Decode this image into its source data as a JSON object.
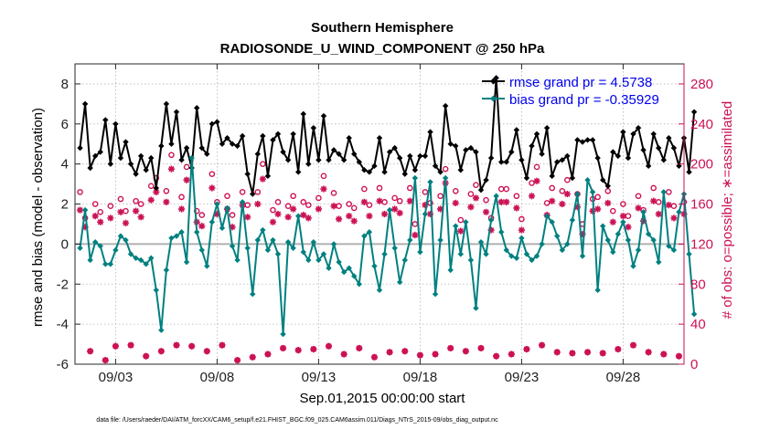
{
  "chart_data": {
    "type": "line",
    "title": "Southern Hemisphere",
    "subtitle": "RADIOSONDE_U_WIND_COMPONENT @ 250 hPa",
    "xlabel": "Sep.01,2015 00:00:00 start",
    "ylabel": "rmse and bias (model - observation)",
    "y2label": "# of obs: o=possible; ∗=assimilated",
    "footer": "data file: /Users/raeder/DAI/ATM_forcXX/CAM6_setup/f.e21.FHIST_BGC.f09_025.CAM6assim.011/Diags_NTrS_2015-09/obs_diag_output.nc",
    "xlim": [
      1.0,
      31.0
    ],
    "ylim": [
      -6,
      9
    ],
    "y2lim": [
      0,
      300
    ],
    "yticks": [
      "-6",
      "-4",
      "-2",
      "0",
      "2",
      "4",
      "6",
      "8"
    ],
    "y2ticks": [
      "0",
      "40",
      "80",
      "120",
      "160",
      "200",
      "240",
      "280"
    ],
    "xticks": [
      {
        "day": 3,
        "label": "09/03"
      },
      {
        "day": 8,
        "label": "09/08"
      },
      {
        "day": 13,
        "label": "09/13"
      },
      {
        "day": 18,
        "label": "09/18"
      },
      {
        "day": 23,
        "label": "09/23"
      },
      {
        "day": 28,
        "label": "09/28"
      }
    ],
    "grid": true,
    "legend_position": "top-right",
    "colors": {
      "rmse": "#000000",
      "bias": "#008080",
      "obs": "#cc1155",
      "zero": "#b0b0b0"
    },
    "series": [
      {
        "name": "rmse",
        "legend": "rmse grand pr = 4.5738",
        "x_start": 1.25,
        "x_step": 0.25,
        "values": [
          4.8,
          7.0,
          3.8,
          4.4,
          4.6,
          6.2,
          4.0,
          6.0,
          4.3,
          5.1,
          4.0,
          3.5,
          4.4,
          3.7,
          4.3,
          2.8,
          4.9,
          7.0,
          5.0,
          6.6,
          4.2,
          4.8,
          3.8,
          6.8,
          4.8,
          4.5,
          6.0,
          6.1,
          5.0,
          5.3,
          5.0,
          4.9,
          5.4,
          3.5,
          2.5,
          4.5,
          5.4,
          3.4,
          5.2,
          5.5,
          4.6,
          4.2,
          5.5,
          3.6,
          6.5,
          4.0,
          5.8,
          4.2,
          6.4,
          4.2,
          4.7,
          4.5,
          4.2,
          5.3,
          4.5,
          4.1,
          3.7,
          3.6,
          3.9,
          5.3,
          3.6,
          4.6,
          4.8,
          4.3,
          3.5,
          4.4,
          3.7,
          4.4,
          4.4,
          5.6,
          3.9,
          3.6,
          6.9,
          5.0,
          4.9,
          3.7,
          4.7,
          4.8,
          4.6,
          2.7,
          3.2,
          4.3,
          8.3,
          4.1,
          4.1,
          4.6,
          5.7,
          4.2,
          3.3,
          4.9,
          5.5,
          4.5,
          5.8,
          3.4,
          4.1,
          4.2,
          4.4,
          3.3,
          5.2,
          5.1,
          5.2,
          5.2,
          4.3,
          3.2,
          2.9,
          4.6,
          4.4,
          5.6,
          4.3,
          5.5,
          5.8,
          4.7,
          3.9,
          5.5,
          4.8,
          4.2,
          5.3,
          4.8,
          3.9,
          5.3,
          3.6,
          6.6
        ]
      },
      {
        "name": "bias",
        "legend": "bias grand pr = -0.35929",
        "x_start": 1.25,
        "x_step": 0.25,
        "values": [
          -0.2,
          1.7,
          -0.8,
          0.1,
          -0.1,
          -1.0,
          -1.0,
          -0.3,
          0.4,
          0.2,
          -0.5,
          -0.7,
          -0.8,
          -1.0,
          -0.7,
          -2.3,
          -4.3,
          -1.3,
          0.3,
          0.4,
          0.6,
          -0.9,
          4.3,
          0.6,
          -0.3,
          -1.1,
          1.1,
          2.0,
          0.8,
          1.8,
          -0.1,
          -0.8,
          2.1,
          -0.2,
          -2.5,
          0.2,
          0.7,
          -0.3,
          0.2,
          -0.5,
          -4.5,
          0.1,
          -0.2,
          1.4,
          -0.4,
          -0.8,
          0.1,
          -0.8,
          -0.5,
          -1.2,
          0.0,
          -0.9,
          -1.4,
          -1.2,
          -1.6,
          -2.0,
          0.4,
          0.6,
          -1.1,
          -2.3,
          -0.5,
          1.7,
          -0.2,
          -1.9,
          -0.8,
          0.2,
          3.3,
          -0.4,
          1.5,
          3.1,
          -2.5,
          0.2,
          3.3,
          -1.3,
          0.9,
          -0.5,
          1.1,
          -0.8,
          -3.2,
          0.1,
          -0.5,
          1.2,
          2.4,
          0.6,
          -0.3,
          -0.6,
          -0.7,
          0.3,
          -0.5,
          -0.8,
          -0.6,
          0.0,
          1.4,
          1.1,
          0.4,
          -0.3,
          0.0,
          1.2,
          2.5,
          -0.6,
          3.2,
          2.6,
          -2.3,
          0.9,
          0.2,
          -0.4,
          0.5,
          1.1,
          0.2,
          -1.1,
          -0.3,
          1.6,
          0.5,
          0.2,
          -0.9,
          2.6,
          -0.1,
          -0.3,
          1.6,
          2.5,
          -0.5,
          -3.5
        ]
      }
    ],
    "obs_possible": {
      "name": "possible",
      "x_start": 1.25,
      "x_step": 0.25,
      "values": [
        172,
        146,
        13,
        160,
        152,
        4,
        158,
        18,
        165,
        153,
        19,
        163,
        160,
        8,
        178,
        186,
        13,
        173,
        209,
        19,
        167,
        197,
        18,
        153,
        149,
        13,
        190,
        162,
        19,
        168,
        149,
        4,
        172,
        159,
        7,
        172,
        200,
        10,
        154,
        162,
        16,
        158,
        168,
        14,
        162,
        159,
        15,
        166,
        188,
        18,
        171,
        158,
        10,
        160,
        156,
        16,
        175,
        159,
        7,
        176,
        162,
        12,
        166,
        163,
        13,
        176,
        140,
        9,
        172,
        161,
        10,
        168,
        195,
        16,
        173,
        144,
        13,
        170,
        179,
        16,
        164,
        146,
        8,
        175,
        175,
        10,
        168,
        145,
        15,
        181,
        197,
        19,
        161,
        176,
        12,
        173,
        184,
        11,
        170,
        140,
        12,
        165,
        167,
        11,
        173,
        153,
        15,
        160,
        148,
        19,
        168,
        154,
        12,
        176,
        162,
        10,
        172,
        158,
        8,
        162
      ]
    },
    "obs_assimilated": {
      "name": "assimilated",
      "x_start": 1.25,
      "x_step": 0.25,
      "values": [
        154,
        137,
        13,
        148,
        142,
        4,
        146,
        18,
        152,
        141,
        19,
        153,
        147,
        8,
        164,
        172,
        13,
        162,
        195,
        19,
        155,
        184,
        18,
        142,
        138,
        13,
        176,
        150,
        19,
        155,
        137,
        4,
        159,
        147,
        7,
        160,
        185,
        10,
        142,
        150,
        16,
        147,
        155,
        14,
        149,
        146,
        15,
        155,
        175,
        18,
        158,
        145,
        10,
        148,
        143,
        16,
        162,
        148,
        7,
        163,
        150,
        12,
        155,
        151,
        13,
        163,
        129,
        9,
        159,
        150,
        10,
        155,
        181,
        16,
        161,
        133,
        13,
        157,
        166,
        16,
        152,
        134,
        8,
        162,
        162,
        10,
        156,
        134,
        15,
        168,
        183,
        19,
        149,
        163,
        12,
        160,
        170,
        11,
        157,
        130,
        12,
        153,
        155,
        11,
        161,
        142,
        15,
        148,
        137,
        19,
        156,
        143,
        12,
        163,
        150,
        10,
        159,
        146,
        8,
        150
      ]
    }
  }
}
